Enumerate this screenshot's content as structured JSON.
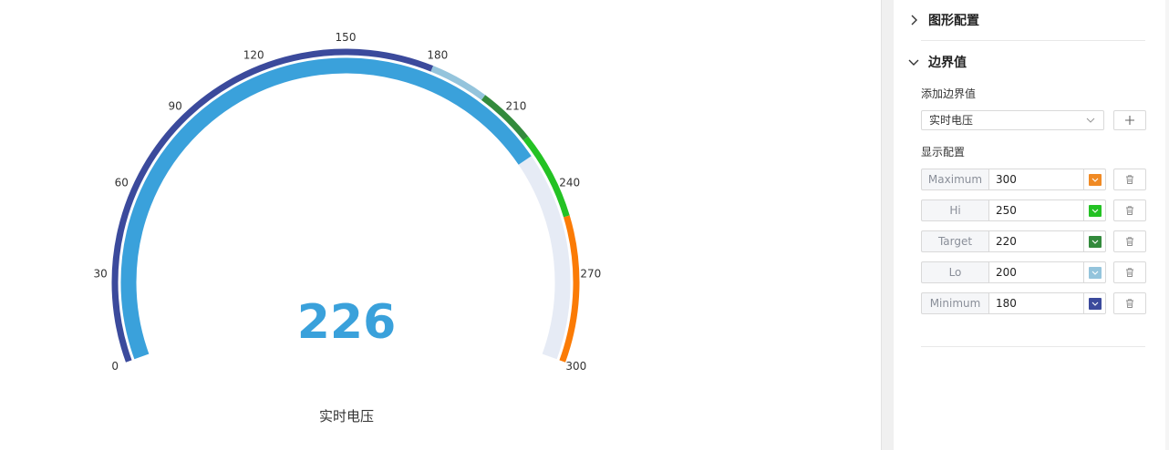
{
  "gauge": {
    "value": "226",
    "label": "实时电压",
    "min": 0,
    "max": 300,
    "current": 226,
    "ticks": [
      "0",
      "30",
      "60",
      "90",
      "120",
      "150",
      "180",
      "210",
      "240",
      "270",
      "300"
    ],
    "bands": [
      {
        "from": 0,
        "to": 180,
        "color": "#3b4a9c"
      },
      {
        "from": 180,
        "to": 200,
        "color": "#94c4dc"
      },
      {
        "from": 200,
        "to": 220,
        "color": "#338a3c"
      },
      {
        "from": 220,
        "to": 250,
        "color": "#24c224"
      },
      {
        "from": 250,
        "to": 300,
        "color": "#fb7b05"
      }
    ],
    "progress_color": "#3aa1db",
    "track_color": "#e6ebf5"
  },
  "panel": {
    "section_shape": "图形配置",
    "section_boundary": "边界值",
    "add_boundary_label": "添加边界值",
    "select_value": "实时电压",
    "display_config_label": "显示配置",
    "rows": [
      {
        "label": "Maximum",
        "value": "300",
        "color": "#f08a24"
      },
      {
        "label": "Hi",
        "value": "250",
        "color": "#24c224"
      },
      {
        "label": "Target",
        "value": "220",
        "color": "#338a3c"
      },
      {
        "label": "Lo",
        "value": "200",
        "color": "#94c4dc"
      },
      {
        "label": "Minimum",
        "value": "180",
        "color": "#3b4a9c"
      }
    ]
  }
}
